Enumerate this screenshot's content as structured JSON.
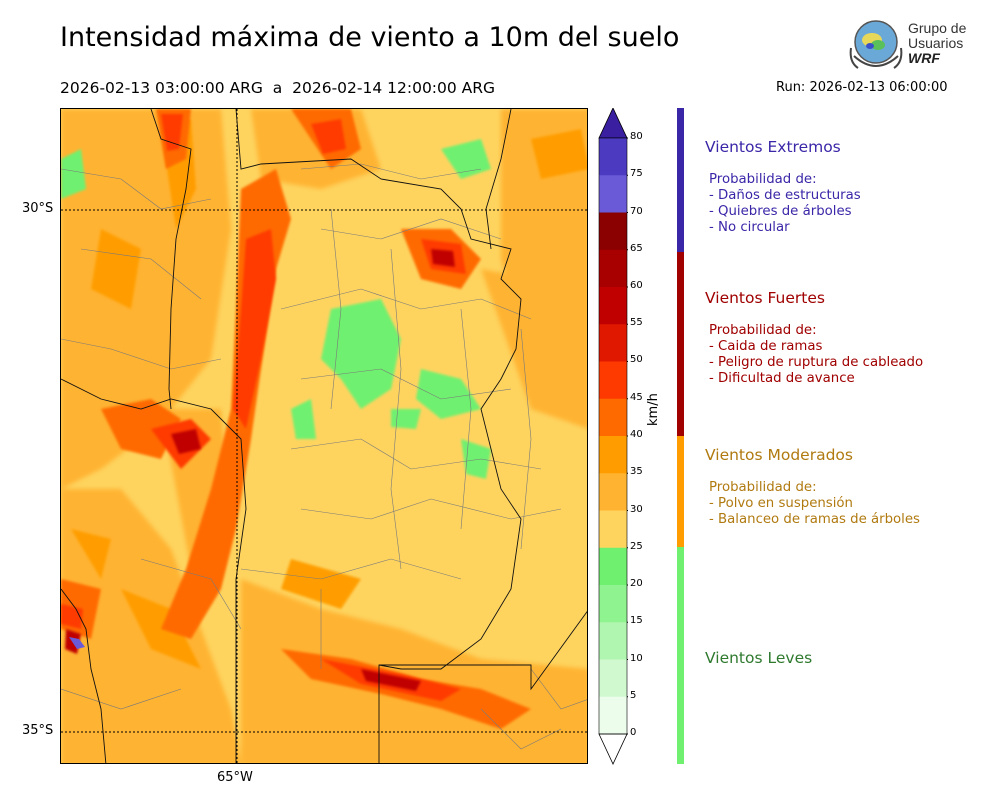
{
  "header": {
    "title": "Intensidad máxima de viento a 10m del suelo",
    "period": "2026-02-13 03:00:00 ARG  a  2026-02-14 12:00:00 ARG",
    "run": "Run: 2026-02-13 06:00:00"
  },
  "logo": {
    "line1": "Grupo de",
    "line2": "Usuarios",
    "line3": "WRF"
  },
  "map": {
    "lat_labels": [
      "30°S",
      "35°S"
    ],
    "lon_labels": [
      "65°W"
    ]
  },
  "colorbar": {
    "unit": "km/h",
    "ticks": [
      "80",
      "75",
      "70",
      "65",
      "60",
      "55",
      "50",
      "45",
      "40",
      "35",
      "30",
      "25",
      "20",
      "15",
      "10",
      "5",
      "0"
    ],
    "colors": [
      "#3a1fa0",
      "#4c3ac0",
      "#6a5ad8",
      "#8b0000",
      "#a80000",
      "#c00000",
      "#e01800",
      "#ff3a00",
      "#ff6a00",
      "#ff9d00",
      "#ffb330",
      "#fed45f",
      "#6ff06f",
      "#8ff38f",
      "#b0f6b0",
      "#d0f9d0",
      "#ecfdec"
    ]
  },
  "categories": [
    {
      "title": "Vientos Extremos",
      "color": "#3a27a8",
      "lines": [
        "Probabilidad de:",
        "- Daños de estructuras",
        "- Quiebres de árboles",
        "- No circular"
      ]
    },
    {
      "title": "Vientos Fuertes",
      "color": "#a00000",
      "lines": [
        "Probabilidad de:",
        "- Caida de ramas",
        "- Peligro de ruptura de cableado",
        "- Dificultad de avance"
      ]
    },
    {
      "title": "Vientos Moderados",
      "color": "#b07a10",
      "lines": [
        "Probabilidad de:",
        "- Polvo en suspensión",
        "- Balanceo de ramas de árboles"
      ]
    },
    {
      "title": "Vientos Leves",
      "color": "#2f7a2f",
      "lines": []
    }
  ]
}
